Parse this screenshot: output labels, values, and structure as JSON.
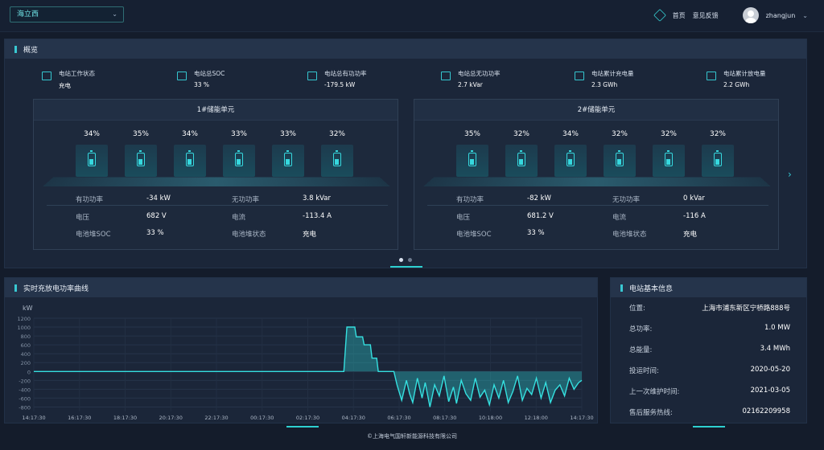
{
  "header": {
    "station": "海立西",
    "nav_home": "首页",
    "nav_feedback": "意见反馈",
    "username": "zhangjun",
    "accent": "#2ed0d0"
  },
  "overview": {
    "title": "概览",
    "kpis": [
      {
        "label": "电站工作状态",
        "value": "充电",
        "icon": "monitor-icon"
      },
      {
        "label": "电站总SOC",
        "value": "33 %",
        "icon": "battery-icon"
      },
      {
        "label": "电站总有功功率",
        "value": "-179.5 kW",
        "icon": "gauge-icon"
      },
      {
        "label": "电站总无功功率",
        "value": "2.7 kVar",
        "icon": "gauge-icon"
      },
      {
        "label": "电站累计充电量",
        "value": "2.3 GWh",
        "icon": "charge-icon"
      },
      {
        "label": "电站累计放电量",
        "value": "2.2 GWh",
        "icon": "discharge-icon"
      }
    ],
    "units": [
      {
        "title": "1#储能单元",
        "cells": [
          "34%",
          "35%",
          "34%",
          "33%",
          "33%",
          "32%"
        ],
        "rows": [
          {
            "k1": "有功功率",
            "v1": "-34 kW",
            "k2": "无功功率",
            "v2": "3.8 kVar"
          },
          {
            "k1": "电压",
            "v1": "682 V",
            "k2": "电流",
            "v2": "-113.4 A"
          },
          {
            "k1": "电池堆SOC",
            "v1": "33 %",
            "k2": "电池堆状态",
            "v2": "充电"
          }
        ]
      },
      {
        "title": "2#储能单元",
        "cells": [
          "35%",
          "32%",
          "34%",
          "32%",
          "32%",
          "32%"
        ],
        "rows": [
          {
            "k1": "有功功率",
            "v1": "-82 kW",
            "k2": "无功功率",
            "v2": "0 kVar"
          },
          {
            "k1": "电压",
            "v1": "681.2 V",
            "k2": "电流",
            "v2": "-116 A"
          },
          {
            "k1": "电池堆SOC",
            "v1": "33 %",
            "k2": "电池堆状态",
            "v2": "充电"
          }
        ]
      }
    ]
  },
  "chart_panel": {
    "title": "实时充放电功率曲线"
  },
  "chart_data": {
    "type": "area",
    "ylabel": "kW",
    "ylim": [
      -900,
      1200
    ],
    "yticks": [
      1200,
      1000,
      800,
      600,
      400,
      200,
      0,
      -200,
      -400,
      -600,
      -800
    ],
    "xticks": [
      "14:17:30",
      "16:17:30",
      "18:17:30",
      "20:17:30",
      "22:17:30",
      "00:17:30",
      "02:17:30",
      "04:17:30",
      "06:17:30",
      "08:17:30",
      "10:18:00",
      "12:18:00",
      "14:17:30"
    ],
    "grid": true,
    "series": [
      {
        "x": [
          0,
          19.8,
          20,
          20.5,
          20.6,
          21.0,
          21.1,
          21.5,
          21.6,
          21.9,
          22,
          23,
          23.2,
          23.5,
          23.8,
          24.0,
          24.2,
          24.5,
          24.8,
          25.0,
          25.3,
          25.6,
          25.9,
          26.2,
          26.5,
          26.8,
          27.0,
          27.3,
          27.6,
          27.9,
          28.2,
          28.5,
          28.8,
          29.1,
          29.4,
          29.7,
          30.0,
          30.3,
          30.6,
          30.9,
          31.2,
          31.5,
          31.8,
          32.1,
          32.4,
          32.7,
          33.0,
          33.3,
          33.6,
          33.9,
          34.2,
          34.5,
          34.8,
          35.0
        ],
        "y": [
          0,
          0,
          1000,
          1000,
          780,
          780,
          600,
          600,
          300,
          300,
          0,
          0,
          -300,
          -650,
          -200,
          -500,
          -700,
          -150,
          -600,
          -250,
          -800,
          -300,
          -550,
          -100,
          -680,
          -350,
          -720,
          -200,
          -500,
          -650,
          -150,
          -580,
          -420,
          -750,
          -300,
          -600,
          -200,
          -700,
          -450,
          -100,
          -650,
          -380,
          -520,
          -150,
          -600,
          -250,
          -700,
          -420,
          -300,
          -550,
          -150,
          -400,
          -250,
          -200
        ]
      }
    ]
  },
  "info": {
    "title": "电站基本信息",
    "rows": [
      {
        "k": "位置:",
        "v": "上海市浦东新区宁桥路888号"
      },
      {
        "k": "总功率:",
        "v": "1.0 MW"
      },
      {
        "k": "总能量:",
        "v": "3.4 MWh"
      },
      {
        "k": "投运时间:",
        "v": "2020-05-20"
      },
      {
        "k": "上一次维护时间:",
        "v": "2021-03-05"
      },
      {
        "k": "售后服务热线:",
        "v": "02162209958"
      }
    ]
  },
  "footer": "©上海电气国轩新能源科技有限公司"
}
